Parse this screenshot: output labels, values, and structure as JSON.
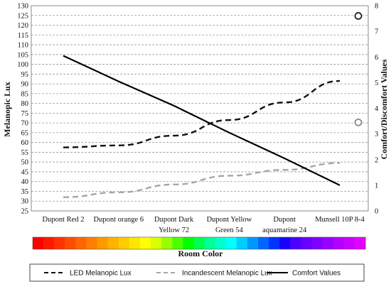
{
  "chart_data": {
    "type": "line",
    "categories": [
      [
        "Dupont Red 2"
      ],
      [
        "Dupont orange 6"
      ],
      [
        "Dupont Dark",
        "Yellow 72"
      ],
      [
        "Dupont Yellow",
        "Green 54"
      ],
      [
        "Dupont",
        "aquamarine 24"
      ],
      [
        "Munsell 10P 8-4"
      ]
    ],
    "ylabel": "Melanopic Lux",
    "y2label": "Comfort/Discomfort  Values",
    "xlabel": "Room Color",
    "ylim": [
      25,
      130
    ],
    "y_ticks": [
      25,
      30,
      35,
      40,
      45,
      50,
      55,
      60,
      65,
      70,
      75,
      80,
      85,
      90,
      95,
      100,
      105,
      110,
      115,
      120,
      125,
      130
    ],
    "y2lim": [
      0,
      8
    ],
    "y2_ticks": [
      0,
      1,
      2,
      3,
      4,
      5,
      6,
      7,
      8
    ],
    "grid": "horizontal dashed",
    "legend_position": "bottom",
    "series": [
      {
        "name": "LED Melanopic Lux",
        "axis": "left",
        "style": "dashed",
        "color": "#111111",
        "values": [
          57.5,
          58.5,
          63.5,
          71.5,
          80.5,
          91.5
        ]
      },
      {
        "name": "Incandescent Melanopic Lux",
        "axis": "left",
        "style": "dashed",
        "color": "#a6a6a6",
        "values": [
          32,
          34.5,
          38.5,
          43,
          46,
          49.5
        ]
      },
      {
        "name": "Comfort Values",
        "axis": "right",
        "style": "solid",
        "color": "#000000",
        "values": [
          6.05,
          5.05,
          4.1,
          3.05,
          2.05,
          1.0
        ]
      }
    ],
    "markers": [
      {
        "axis": "right",
        "x_position": "right edge",
        "value": 7.6,
        "color": "#222222"
      },
      {
        "axis": "right",
        "x_position": "right edge",
        "value": 3.45,
        "color": "#888888"
      }
    ],
    "color_bar": [
      "#ff0000",
      "#ff1800",
      "#ff3300",
      "#ff4d00",
      "#ff6600",
      "#ff8000",
      "#ff9900",
      "#ffb300",
      "#ffcc00",
      "#ffe600",
      "#ffff00",
      "#d9ff00",
      "#99ff00",
      "#4dff00",
      "#00ff00",
      "#00ff4d",
      "#00ff99",
      "#00ffcc",
      "#00ffff",
      "#00ccff",
      "#0099ff",
      "#0066ff",
      "#0033ff",
      "#1a00ff",
      "#4d00ff",
      "#6600ff",
      "#8000ff",
      "#9900ff",
      "#b300ff",
      "#cc00ff",
      "#e600ff"
    ]
  }
}
